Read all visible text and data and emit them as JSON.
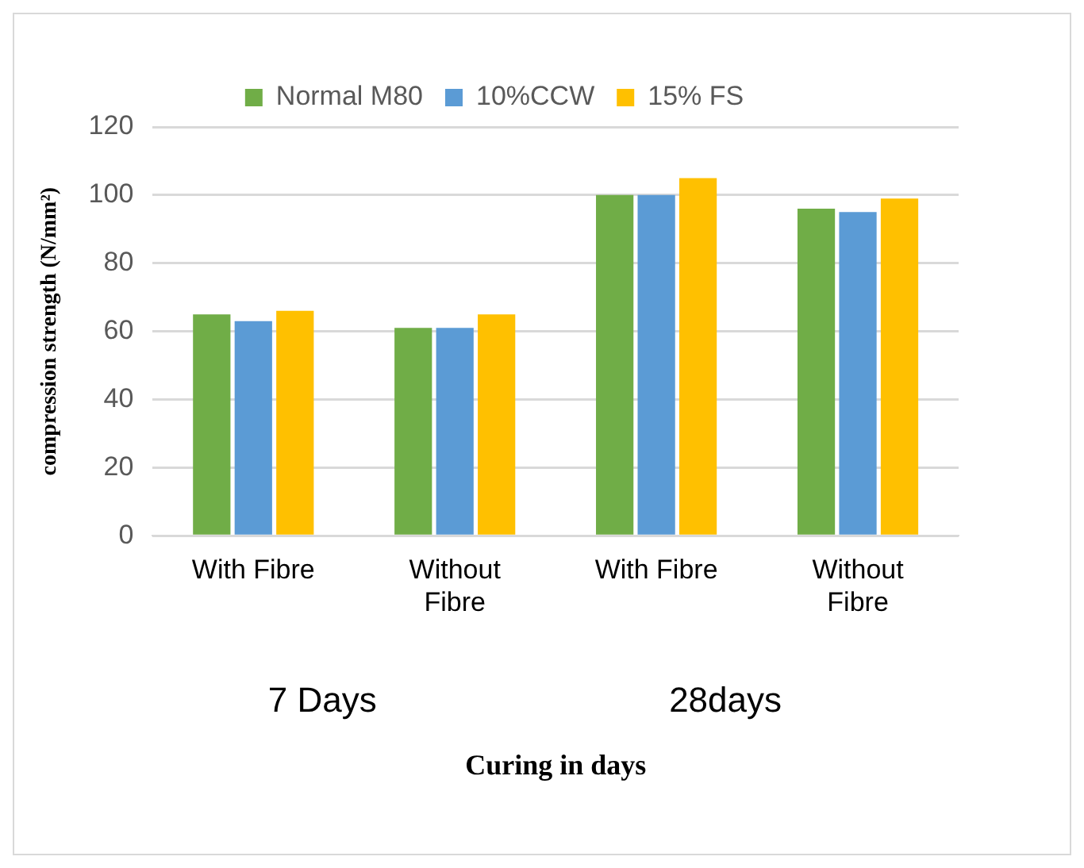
{
  "chart_data": {
    "type": "bar",
    "categories": [
      "With Fibre",
      "Without Fibre",
      "With Fibre",
      "Without Fibre"
    ],
    "series": [
      {
        "name": "Normal M80",
        "color": "#70ad47",
        "values": [
          65,
          61,
          100,
          96
        ]
      },
      {
        "name": "10%CCW",
        "color": "#5b9bd5",
        "values": [
          63,
          61,
          100,
          95
        ]
      },
      {
        "name": "15% FS",
        "color": "#ffc000",
        "values": [
          66,
          65,
          105,
          99
        ]
      }
    ],
    "ylim": [
      0,
      120
    ],
    "yticks": [
      0,
      20,
      40,
      60,
      80,
      100,
      120
    ],
    "grid": "y",
    "legend": "top",
    "xlabel": "Curing in days",
    "ylabel": "compression strength (N/mm²)",
    "annotations": [
      "7 Days",
      "28days"
    ]
  }
}
